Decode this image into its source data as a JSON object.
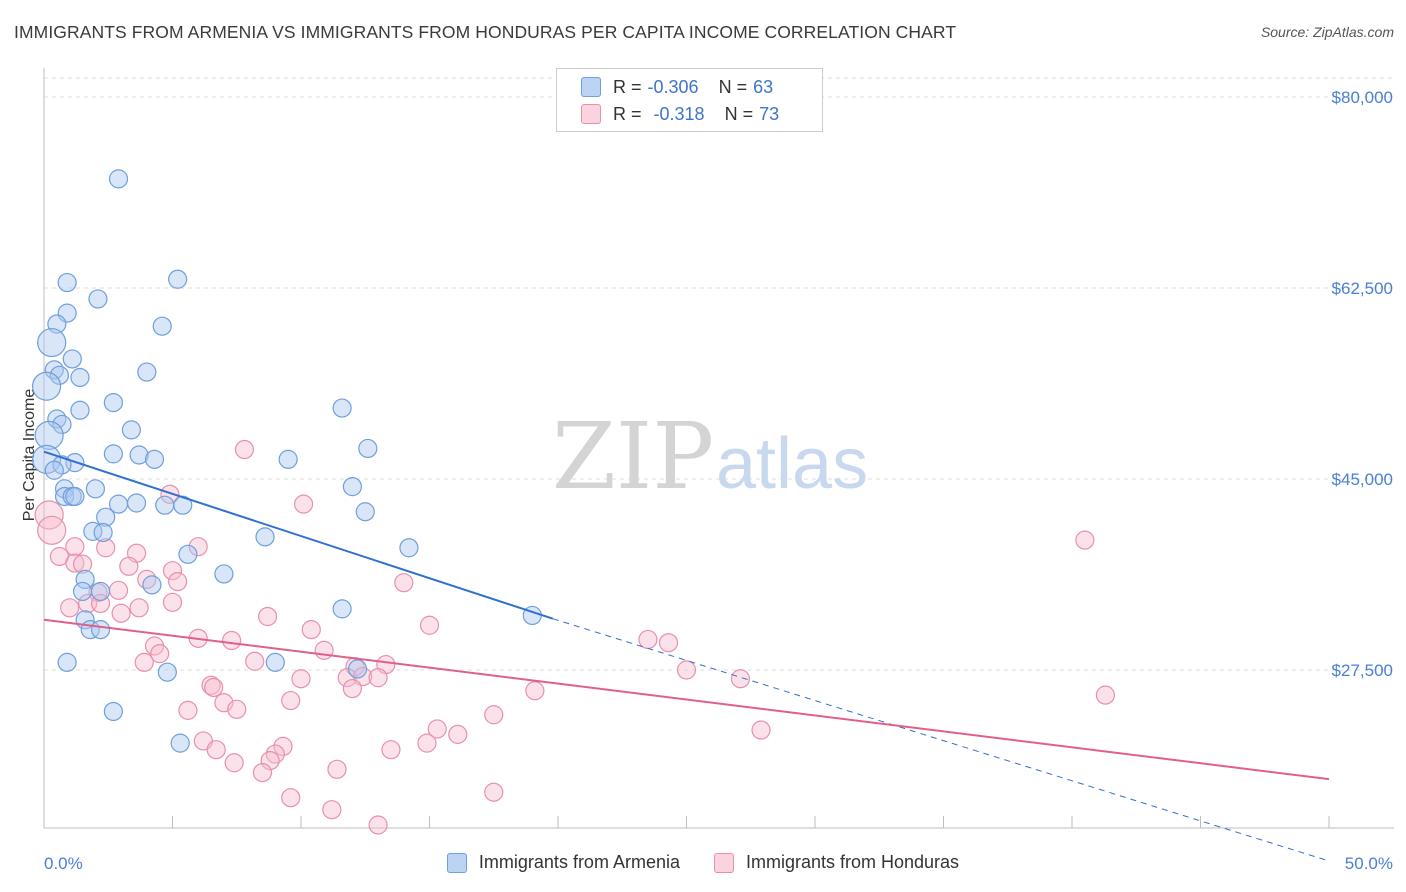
{
  "title": "IMMIGRANTS FROM ARMENIA VS IMMIGRANTS FROM HONDURAS PER CAPITA INCOME CORRELATION CHART",
  "source": "Source: ZipAtlas.com",
  "watermark": {
    "zip": "ZIP",
    "atlas": "atlas"
  },
  "colors": {
    "armenia_fill": "#aac8f0",
    "armenia_stroke": "#6f9fdc",
    "armenia_line": "#3070d0",
    "honduras_fill": "#f6bfd0",
    "honduras_stroke": "#e890aa",
    "honduras_line": "#e0608a",
    "grid": "#dddddd",
    "tick_text": "#4a7fd4"
  },
  "legend": {
    "rows": [
      {
        "r_label": "R =",
        "r_value": "-0.306",
        "n_label": "N =",
        "n_value": "63"
      },
      {
        "r_label": "R =",
        "r_value": "-0.318",
        "n_label": "N =",
        "n_value": "73"
      }
    ]
  },
  "bottom_legend": [
    "Immigrants from Armenia",
    "Immigrants from Honduras"
  ],
  "chart_data": {
    "type": "scatter",
    "title": "IMMIGRANTS FROM ARMENIA VS IMMIGRANTS FROM HONDURAS PER CAPITA INCOME CORRELATION CHART",
    "xlabel": "",
    "ylabel": "Per Capita Income",
    "xlim": [
      0,
      50
    ],
    "ylim": [
      10000,
      82500
    ],
    "x_tick_labels": [
      "0.0%",
      "50.0%"
    ],
    "y_ticks": [
      27500,
      45000,
      62500,
      80000
    ],
    "y_tick_labels": [
      "$27,500",
      "$45,000",
      "$62,500",
      "$80,000"
    ],
    "grid": true,
    "series": [
      {
        "name": "Immigrants from Armenia",
        "R": -0.306,
        "N": 63,
        "trend": {
          "x0": 0,
          "y0": 47500,
          "x1": 19.8,
          "y1": 32200,
          "dashed_to_x": 50,
          "dashed_to_y": 10000
        },
        "points": [
          [
            2.9,
            72500
          ],
          [
            0.9,
            63000
          ],
          [
            5.2,
            63300
          ],
          [
            2.1,
            61500
          ],
          [
            0.9,
            60200
          ],
          [
            0.5,
            59200
          ],
          [
            4.6,
            59000
          ],
          [
            0.3,
            57500
          ],
          [
            1.1,
            56000
          ],
          [
            0.4,
            55000
          ],
          [
            4.0,
            54800
          ],
          [
            0.6,
            54500
          ],
          [
            1.4,
            54300
          ],
          [
            0.1,
            53500
          ],
          [
            2.7,
            52000
          ],
          [
            11.6,
            51500
          ],
          [
            1.4,
            51300
          ],
          [
            0.5,
            50500
          ],
          [
            0.7,
            50000
          ],
          [
            3.4,
            49500
          ],
          [
            0.2,
            49000
          ],
          [
            12.6,
            47800
          ],
          [
            3.7,
            47200
          ],
          [
            0.1,
            46800
          ],
          [
            2.7,
            47300
          ],
          [
            4.3,
            46800
          ],
          [
            9.5,
            46800
          ],
          [
            1.2,
            46500
          ],
          [
            0.7,
            46300
          ],
          [
            0.4,
            45800
          ],
          [
            12.0,
            44300
          ],
          [
            0.8,
            44100
          ],
          [
            2.0,
            44100
          ],
          [
            0.8,
            43400
          ],
          [
            1.1,
            43400
          ],
          [
            1.2,
            43400
          ],
          [
            3.6,
            42800
          ],
          [
            2.9,
            42700
          ],
          [
            4.7,
            42600
          ],
          [
            5.4,
            42600
          ],
          [
            12.5,
            42000
          ],
          [
            2.4,
            41500
          ],
          [
            1.9,
            40200
          ],
          [
            2.3,
            40100
          ],
          [
            8.6,
            39700
          ],
          [
            14.2,
            38700
          ],
          [
            5.6,
            38100
          ],
          [
            7.0,
            36300
          ],
          [
            1.6,
            35800
          ],
          [
            4.2,
            35300
          ],
          [
            1.5,
            34700
          ],
          [
            2.2,
            34700
          ],
          [
            11.6,
            33100
          ],
          [
            19.0,
            32500
          ],
          [
            1.6,
            32100
          ],
          [
            1.8,
            31200
          ],
          [
            2.2,
            31200
          ],
          [
            0.9,
            28200
          ],
          [
            9.0,
            28200
          ],
          [
            12.2,
            27600
          ],
          [
            4.8,
            27300
          ],
          [
            2.7,
            23700
          ],
          [
            5.3,
            20800
          ]
        ]
      },
      {
        "name": "Immigrants from Honduras",
        "R": -0.318,
        "N": 73,
        "trend": {
          "x0": 0,
          "y0": 32100,
          "x1": 50,
          "y1": 17500
        },
        "points": [
          [
            0.2,
            41700
          ],
          [
            0.3,
            40300
          ],
          [
            7.8,
            47700
          ],
          [
            10.1,
            42700
          ],
          [
            4.9,
            43600
          ],
          [
            40.5,
            39400
          ],
          [
            1.2,
            38800
          ],
          [
            2.4,
            38700
          ],
          [
            6.0,
            38800
          ],
          [
            0.6,
            37900
          ],
          [
            3.6,
            38200
          ],
          [
            1.2,
            37300
          ],
          [
            1.5,
            37200
          ],
          [
            3.3,
            37000
          ],
          [
            5.0,
            36600
          ],
          [
            4.0,
            35800
          ],
          [
            5.2,
            35600
          ],
          [
            14.0,
            35500
          ],
          [
            2.9,
            34800
          ],
          [
            2.1,
            34600
          ],
          [
            1.7,
            33600
          ],
          [
            2.2,
            33600
          ],
          [
            5.0,
            33700
          ],
          [
            1.0,
            33200
          ],
          [
            3.7,
            33200
          ],
          [
            3.0,
            32700
          ],
          [
            8.7,
            32400
          ],
          [
            15.0,
            31600
          ],
          [
            10.4,
            31200
          ],
          [
            6.0,
            30400
          ],
          [
            7.3,
            30200
          ],
          [
            23.5,
            30300
          ],
          [
            24.3,
            30000
          ],
          [
            4.3,
            29700
          ],
          [
            10.9,
            29300
          ],
          [
            4.5,
            29000
          ],
          [
            3.9,
            28200
          ],
          [
            8.2,
            28300
          ],
          [
            13.3,
            28000
          ],
          [
            12.1,
            27800
          ],
          [
            25.0,
            27500
          ],
          [
            11.8,
            26800
          ],
          [
            12.4,
            26900
          ],
          [
            13.0,
            26800
          ],
          [
            10.0,
            26700
          ],
          [
            27.1,
            26700
          ],
          [
            6.5,
            26100
          ],
          [
            6.6,
            25900
          ],
          [
            12.0,
            25800
          ],
          [
            19.1,
            25600
          ],
          [
            41.3,
            25200
          ],
          [
            9.6,
            24700
          ],
          [
            7.0,
            24500
          ],
          [
            7.5,
            23900
          ],
          [
            5.6,
            23800
          ],
          [
            17.5,
            23400
          ],
          [
            27.9,
            22000
          ],
          [
            15.3,
            22100
          ],
          [
            16.1,
            21600
          ],
          [
            6.2,
            21000
          ],
          [
            9.3,
            20500
          ],
          [
            14.9,
            20800
          ],
          [
            6.7,
            20200
          ],
          [
            13.5,
            20200
          ],
          [
            9.0,
            19800
          ],
          [
            8.8,
            19200
          ],
          [
            7.4,
            19000
          ],
          [
            11.4,
            18400
          ],
          [
            8.5,
            18100
          ],
          [
            17.5,
            16300
          ],
          [
            9.6,
            15800
          ],
          [
            11.2,
            14700
          ],
          [
            13.0,
            13300
          ]
        ]
      }
    ]
  }
}
